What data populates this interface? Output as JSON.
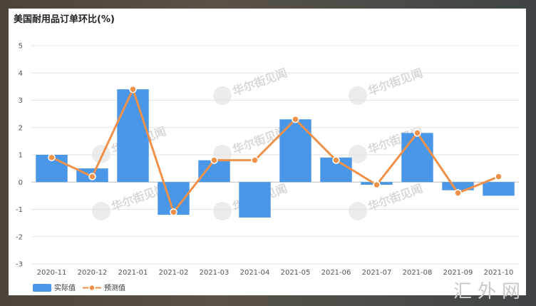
{
  "colors": {
    "bar": "#4a97e8",
    "line": "#f0914a",
    "grid": "#e3e3e3",
    "zero_line": "#bdbdbd"
  },
  "watermark": "华尔街见闻",
  "brand_watermark": "汇外网",
  "chart_data": {
    "type": "bar",
    "title": "美国耐用品订单环比(%)",
    "categories": [
      "2020-11",
      "2020-12",
      "2021-01",
      "2021-02",
      "2021-03",
      "2021-04",
      "2021-05",
      "2021-06",
      "2021-07",
      "2021-08",
      "2021-09",
      "2021-10"
    ],
    "ylim": [
      -3,
      5
    ],
    "yticks": [
      5,
      4,
      3,
      2,
      1,
      0,
      -1,
      -2,
      -3
    ],
    "grid": true,
    "legend_position": "bottom-left",
    "series": [
      {
        "name": "实际值",
        "type": "bar",
        "values": [
          1.0,
          0.5,
          3.4,
          -1.2,
          0.8,
          -1.3,
          2.3,
          0.9,
          -0.1,
          1.8,
          -0.3,
          -0.5
        ]
      },
      {
        "name": "预测值",
        "type": "line",
        "values": [
          0.9,
          0.2,
          3.4,
          -1.1,
          0.8,
          0.8,
          2.3,
          0.8,
          -0.1,
          1.8,
          -0.4,
          0.2
        ]
      }
    ]
  }
}
